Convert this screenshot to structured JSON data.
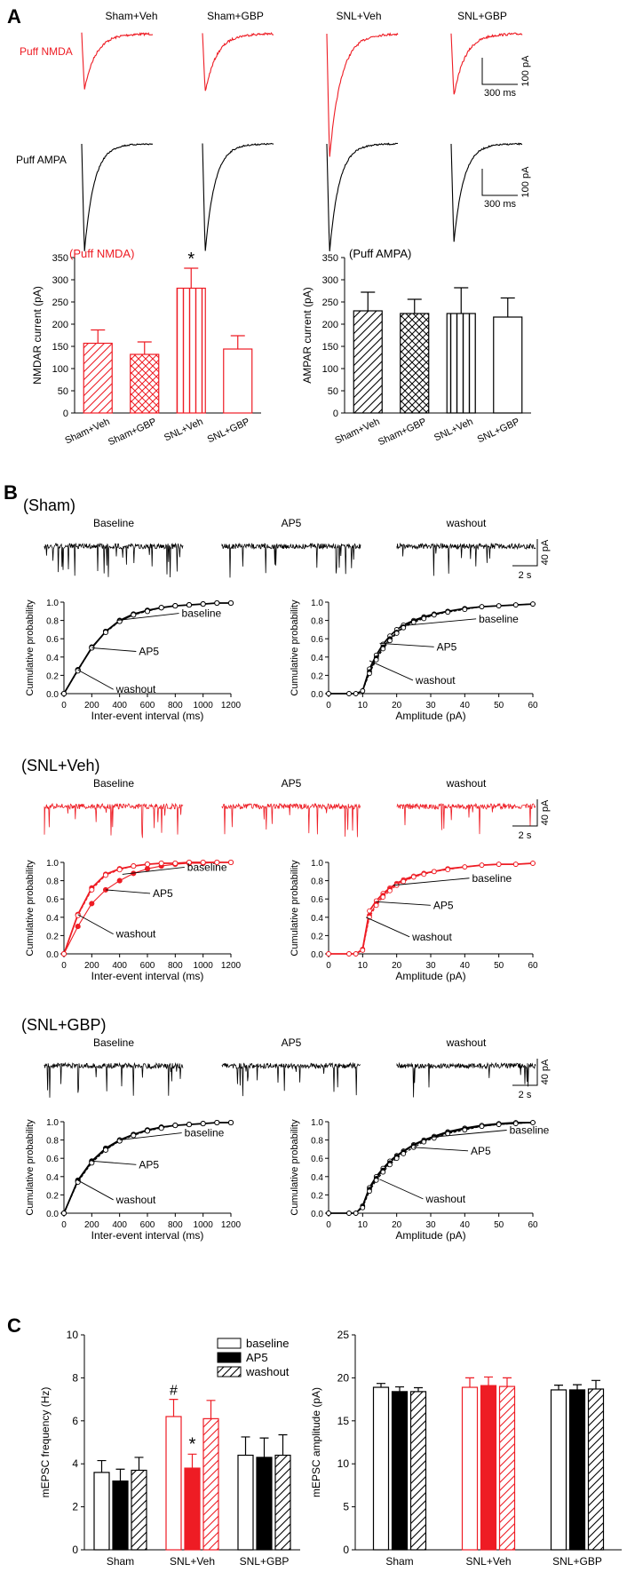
{
  "colors": {
    "red": "#ee1c24",
    "black": "#000000"
  },
  "panel_labels": [
    "A",
    "B",
    "C"
  ],
  "chart_data": [
    {
      "id": "A_traces",
      "type": "line",
      "conditions": [
        "Sham+Veh",
        "Sham+GBP",
        "SNL+Veh",
        "SNL+GBP"
      ],
      "rows": [
        {
          "label": "Puff NMDA",
          "color": "red",
          "peak_pA": [
            -90,
            -95,
            -200,
            -100
          ]
        },
        {
          "label": "Puff AMPA",
          "color": "black",
          "peak_pA": [
            -175,
            -175,
            -175,
            -160
          ]
        }
      ],
      "scale_bars": [
        {
          "x": "300 ms",
          "y": "100 pA"
        },
        {
          "x": "300 ms",
          "y": "100 pA"
        }
      ]
    },
    {
      "id": "A_nmda",
      "type": "bar",
      "title": "(Puff NMDA)",
      "ylabel": "NMDAR current (pA)",
      "categories": [
        "Sham+Veh",
        "Sham+GBP",
        "SNL+Veh",
        "SNL+GBP"
      ],
      "values": [
        157,
        132,
        281,
        144
      ],
      "errors": [
        30,
        28,
        45,
        30
      ],
      "patterns": [
        "diag",
        "cross",
        "vert",
        "none"
      ],
      "ylim": [
        0,
        350
      ],
      "yticks": [
        "0",
        "50",
        "100",
        "150",
        "200",
        "250",
        "300",
        "350"
      ],
      "annotations": [
        {
          "category": "SNL+Veh",
          "text": "*"
        }
      ]
    },
    {
      "id": "A_ampa",
      "type": "bar",
      "title": "(Puff AMPA)",
      "ylabel": "AMPAR current (pA)",
      "categories": [
        "Sham+Veh",
        "Sham+GBP",
        "SNL+Veh",
        "SNL+GBP"
      ],
      "values": [
        230,
        224,
        224,
        216
      ],
      "errors": [
        42,
        32,
        58,
        43
      ],
      "patterns": [
        "diag",
        "cross",
        "vert",
        "none"
      ],
      "ylim": [
        0,
        350
      ],
      "yticks": [
        "0",
        "50",
        "100",
        "150",
        "200",
        "250",
        "300",
        "350"
      ]
    },
    {
      "id": "B_sham",
      "group": "(Sham)",
      "color": "black",
      "trace_labels": [
        "Baseline",
        "AP5",
        "washout"
      ],
      "trace_scale": {
        "x": "2 s",
        "y": "40 pA"
      },
      "interval": {
        "type": "line",
        "xlabel": "Inter-event interval (ms)",
        "ylabel": "Cumulative probability",
        "xticks": [
          "0",
          "200",
          "400",
          "600",
          "800",
          "1000",
          "1200"
        ],
        "yticks": [
          "0.0",
          "0.2",
          "0.4",
          "0.6",
          "0.8",
          "1.0"
        ],
        "xlim": [
          0,
          1200
        ],
        "ylim": [
          0,
          1
        ],
        "x": [
          0,
          100,
          200,
          300,
          400,
          500,
          600,
          700,
          800,
          900,
          1000,
          1100,
          1200
        ],
        "series": [
          {
            "name": "baseline",
            "values": [
              0,
              0.26,
              0.5,
              0.68,
              0.8,
              0.87,
              0.91,
              0.94,
              0.96,
              0.97,
              0.98,
              0.99,
              0.99
            ]
          },
          {
            "name": "AP5",
            "values": [
              0,
              0.26,
              0.51,
              0.68,
              0.79,
              0.86,
              0.91,
              0.94,
              0.96,
              0.97,
              0.98,
              0.99,
              0.99
            ]
          },
          {
            "name": "washout",
            "values": [
              0,
              0.25,
              0.5,
              0.67,
              0.79,
              0.86,
              0.9,
              0.94,
              0.96,
              0.97,
              0.98,
              0.99,
              0.99
            ]
          }
        ],
        "callouts": [
          {
            "name": "baseline",
            "x": 380,
            "y": 0.8
          },
          {
            "name": "AP5",
            "x": 200,
            "y": 0.5
          },
          {
            "name": "washout",
            "x": 100,
            "y": 0.26
          }
        ]
      },
      "amplitude": {
        "type": "line",
        "xlabel": "Amplitude (pA)",
        "ylabel": "Cumulative probability",
        "xticks": [
          "0",
          "10",
          "20",
          "30",
          "40",
          "50",
          "60"
        ],
        "yticks": [
          "0.0",
          "0.2",
          "0.4",
          "0.6",
          "0.8",
          "1.0"
        ],
        "xlim": [
          0,
          60
        ],
        "ylim": [
          0,
          1
        ],
        "x": [
          0,
          6,
          8,
          10,
          12,
          14,
          16,
          18,
          20,
          22,
          25,
          28,
          31,
          35,
          40,
          45,
          50,
          55,
          60
        ],
        "series": [
          {
            "name": "baseline",
            "values": [
              0,
              0,
              0,
              0.03,
              0.27,
              0.42,
              0.54,
              0.63,
              0.7,
              0.75,
              0.8,
              0.84,
              0.87,
              0.9,
              0.93,
              0.95,
              0.96,
              0.97,
              0.98
            ]
          },
          {
            "name": "AP5",
            "values": [
              0,
              0,
              0,
              0.03,
              0.24,
              0.39,
              0.51,
              0.6,
              0.67,
              0.73,
              0.79,
              0.83,
              0.86,
              0.9,
              0.93,
              0.95,
              0.96,
              0.97,
              0.98
            ]
          },
          {
            "name": "washout",
            "values": [
              0,
              0,
              0,
              0.03,
              0.22,
              0.37,
              0.49,
              0.58,
              0.66,
              0.72,
              0.78,
              0.82,
              0.86,
              0.89,
              0.92,
              0.95,
              0.96,
              0.97,
              0.98
            ]
          }
        ],
        "callouts": [
          {
            "name": "baseline",
            "x": 21,
            "y": 0.74
          },
          {
            "name": "AP5",
            "x": 15,
            "y": 0.55
          },
          {
            "name": "washout",
            "x": 12,
            "y": 0.36
          }
        ]
      }
    },
    {
      "id": "B_snl_veh",
      "group": "(SNL+Veh)",
      "color": "red",
      "trace_labels": [
        "Baseline",
        "AP5",
        "washout"
      ],
      "trace_scale": {
        "x": "2 s",
        "y": "40 pA"
      },
      "interval": {
        "type": "line",
        "xlabel": "Inter-event interval (ms)",
        "ylabel": "Cumulative probability",
        "xticks": [
          "0",
          "200",
          "400",
          "600",
          "800",
          "1000",
          "1200"
        ],
        "yticks": [
          "0.0",
          "0.2",
          "0.4",
          "0.6",
          "0.8",
          "1.0"
        ],
        "xlim": [
          0,
          1200
        ],
        "ylim": [
          0,
          1
        ],
        "x": [
          0,
          100,
          200,
          300,
          400,
          500,
          600,
          700,
          800,
          900,
          1000,
          1100,
          1200
        ],
        "series": [
          {
            "name": "baseline",
            "values": [
              0,
              0.43,
              0.72,
              0.87,
              0.93,
              0.96,
              0.98,
              0.99,
              0.99,
              1,
              1,
              1,
              1
            ]
          },
          {
            "name": "AP5",
            "values": [
              0,
              0.3,
              0.55,
              0.7,
              0.8,
              0.88,
              0.93,
              0.96,
              0.98,
              0.99,
              0.99,
              1,
              1
            ]
          },
          {
            "name": "washout",
            "values": [
              0,
              0.42,
              0.7,
              0.86,
              0.92,
              0.96,
              0.98,
              0.99,
              0.99,
              1,
              1,
              1,
              1
            ]
          }
        ],
        "callouts": [
          {
            "name": "baseline",
            "x": 420,
            "y": 0.87
          },
          {
            "name": "AP5",
            "x": 300,
            "y": 0.7
          },
          {
            "name": "washout",
            "x": 100,
            "y": 0.43
          }
        ]
      },
      "amplitude": {
        "type": "line",
        "xlabel": "Amplitude (pA)",
        "ylabel": "Cumulative probability",
        "xticks": [
          "0",
          "10",
          "20",
          "30",
          "40",
          "50",
          "60"
        ],
        "yticks": [
          "0.0",
          "0.2",
          "0.4",
          "0.6",
          "0.8",
          "1.0"
        ],
        "xlim": [
          0,
          60
        ],
        "ylim": [
          0,
          1
        ],
        "x": [
          0,
          6,
          8,
          10,
          12,
          14,
          16,
          18,
          20,
          22,
          25,
          28,
          31,
          35,
          40,
          45,
          50,
          55,
          60
        ],
        "series": [
          {
            "name": "baseline",
            "values": [
              0,
              0,
              0,
              0.05,
              0.47,
              0.58,
              0.66,
              0.72,
              0.77,
              0.81,
              0.85,
              0.88,
              0.9,
              0.93,
              0.95,
              0.97,
              0.98,
              0.98,
              0.99
            ]
          },
          {
            "name": "AP5",
            "values": [
              0,
              0,
              0,
              0.04,
              0.42,
              0.55,
              0.64,
              0.71,
              0.76,
              0.8,
              0.84,
              0.88,
              0.9,
              0.93,
              0.95,
              0.97,
              0.98,
              0.98,
              0.99
            ]
          },
          {
            "name": "washout",
            "values": [
              0,
              0,
              0,
              0.04,
              0.4,
              0.53,
              0.62,
              0.69,
              0.75,
              0.79,
              0.84,
              0.87,
              0.9,
              0.92,
              0.95,
              0.97,
              0.98,
              0.98,
              0.99
            ]
          }
        ],
        "callouts": [
          {
            "name": "baseline",
            "x": 19,
            "y": 0.75
          },
          {
            "name": "AP5",
            "x": 14,
            "y": 0.57
          },
          {
            "name": "washout",
            "x": 11,
            "y": 0.4
          }
        ]
      }
    },
    {
      "id": "B_snl_gbp",
      "group": "(SNL+GBP)",
      "color": "black",
      "trace_labels": [
        "Baseline",
        "AP5",
        "washout"
      ],
      "trace_scale": {
        "x": "2 s",
        "y": "40 pA"
      },
      "interval": {
        "type": "line",
        "xlabel": "Inter-event interval (ms)",
        "ylabel": "Cumulative probability",
        "xticks": [
          "0",
          "200",
          "400",
          "600",
          "800",
          "1000",
          "1200"
        ],
        "yticks": [
          "0.0",
          "0.2",
          "0.4",
          "0.6",
          "0.8",
          "1.0"
        ],
        "xlim": [
          0,
          1200
        ],
        "ylim": [
          0,
          1
        ],
        "x": [
          0,
          100,
          200,
          300,
          400,
          500,
          600,
          700,
          800,
          900,
          1000,
          1100,
          1200
        ],
        "series": [
          {
            "name": "baseline",
            "values": [
              0,
              0.36,
              0.57,
              0.71,
              0.8,
              0.86,
              0.91,
              0.94,
              0.96,
              0.97,
              0.98,
              0.99,
              0.99
            ]
          },
          {
            "name": "AP5",
            "values": [
              0,
              0.35,
              0.56,
              0.7,
              0.79,
              0.86,
              0.9,
              0.94,
              0.96,
              0.97,
              0.98,
              0.99,
              0.99
            ]
          },
          {
            "name": "washout",
            "values": [
              0,
              0.34,
              0.55,
              0.69,
              0.79,
              0.85,
              0.9,
              0.93,
              0.96,
              0.97,
              0.98,
              0.99,
              0.99
            ]
          }
        ],
        "callouts": [
          {
            "name": "baseline",
            "x": 400,
            "y": 0.8
          },
          {
            "name": "AP5",
            "x": 200,
            "y": 0.57
          },
          {
            "name": "washout",
            "x": 100,
            "y": 0.36
          }
        ]
      },
      "amplitude": {
        "type": "line",
        "xlabel": "Amplitude (pA)",
        "ylabel": "Cumulative probability",
        "xticks": [
          "0",
          "10",
          "20",
          "30",
          "40",
          "50",
          "60"
        ],
        "yticks": [
          "0.0",
          "0.2",
          "0.4",
          "0.6",
          "0.8",
          "1.0"
        ],
        "xlim": [
          0,
          60
        ],
        "ylim": [
          0,
          1
        ],
        "x": [
          0,
          6,
          8,
          10,
          12,
          14,
          16,
          18,
          20,
          22,
          25,
          28,
          31,
          35,
          40,
          45,
          50,
          55,
          60
        ],
        "series": [
          {
            "name": "baseline",
            "values": [
              0,
              0,
              0,
              0.08,
              0.28,
              0.4,
              0.49,
              0.57,
              0.63,
              0.68,
              0.75,
              0.8,
              0.84,
              0.89,
              0.93,
              0.96,
              0.98,
              0.99,
              0.99
            ]
          },
          {
            "name": "AP5",
            "values": [
              0,
              0,
              0,
              0.07,
              0.26,
              0.38,
              0.47,
              0.55,
              0.62,
              0.67,
              0.74,
              0.79,
              0.83,
              0.88,
              0.92,
              0.95,
              0.97,
              0.98,
              0.99
            ]
          },
          {
            "name": "washout",
            "values": [
              0,
              0,
              0,
              0.06,
              0.24,
              0.36,
              0.45,
              0.53,
              0.6,
              0.65,
              0.72,
              0.78,
              0.82,
              0.87,
              0.91,
              0.95,
              0.97,
              0.98,
              0.99
            ]
          }
        ],
        "callouts": [
          {
            "name": "baseline",
            "x": 30,
            "y": 0.83
          },
          {
            "name": "AP5",
            "x": 25,
            "y": 0.72
          },
          {
            "name": "washout",
            "x": 15,
            "y": 0.37
          }
        ]
      }
    },
    {
      "id": "C_freq",
      "type": "bar",
      "ylabel": "mEPSC frequency (Hz)",
      "categories": [
        "Sham",
        "SNL+Veh",
        "SNL+GBP"
      ],
      "legend": [
        "baseline",
        "AP5",
        "washout"
      ],
      "series": [
        {
          "name": "baseline",
          "values": [
            3.6,
            6.2,
            4.4
          ],
          "errors": [
            0.55,
            0.8,
            0.85
          ]
        },
        {
          "name": "AP5",
          "values": [
            3.2,
            3.8,
            4.3
          ],
          "errors": [
            0.55,
            0.65,
            0.9
          ]
        },
        {
          "name": "washout",
          "values": [
            3.7,
            6.1,
            4.4
          ],
          "errors": [
            0.6,
            0.85,
            0.95
          ]
        }
      ],
      "colors_by_category": [
        "black",
        "red",
        "black"
      ],
      "ylim": [
        0,
        10
      ],
      "yticks": [
        "0",
        "2",
        "4",
        "6",
        "8",
        "10"
      ],
      "annotations": [
        {
          "category": "SNL+Veh",
          "series": "baseline",
          "text": "#"
        },
        {
          "category": "SNL+Veh",
          "series": "AP5",
          "text": "*"
        }
      ]
    },
    {
      "id": "C_amp",
      "type": "bar",
      "ylabel": "mEPSC amplitude (pA)",
      "categories": [
        "Sham",
        "SNL+Veh",
        "SNL+GBP"
      ],
      "series": [
        {
          "name": "baseline",
          "values": [
            18.9,
            18.9,
            18.6
          ],
          "errors": [
            0.45,
            1.1,
            0.55
          ]
        },
        {
          "name": "AP5",
          "values": [
            18.4,
            19.1,
            18.6
          ],
          "errors": [
            0.55,
            1.0,
            0.6
          ]
        },
        {
          "name": "washout",
          "values": [
            18.4,
            19.0,
            18.7
          ],
          "errors": [
            0.45,
            1.0,
            1.0
          ]
        }
      ],
      "colors_by_category": [
        "black",
        "red",
        "black"
      ],
      "ylim": [
        0,
        25
      ],
      "yticks": [
        "0",
        "5",
        "10",
        "15",
        "20",
        "25"
      ]
    }
  ]
}
